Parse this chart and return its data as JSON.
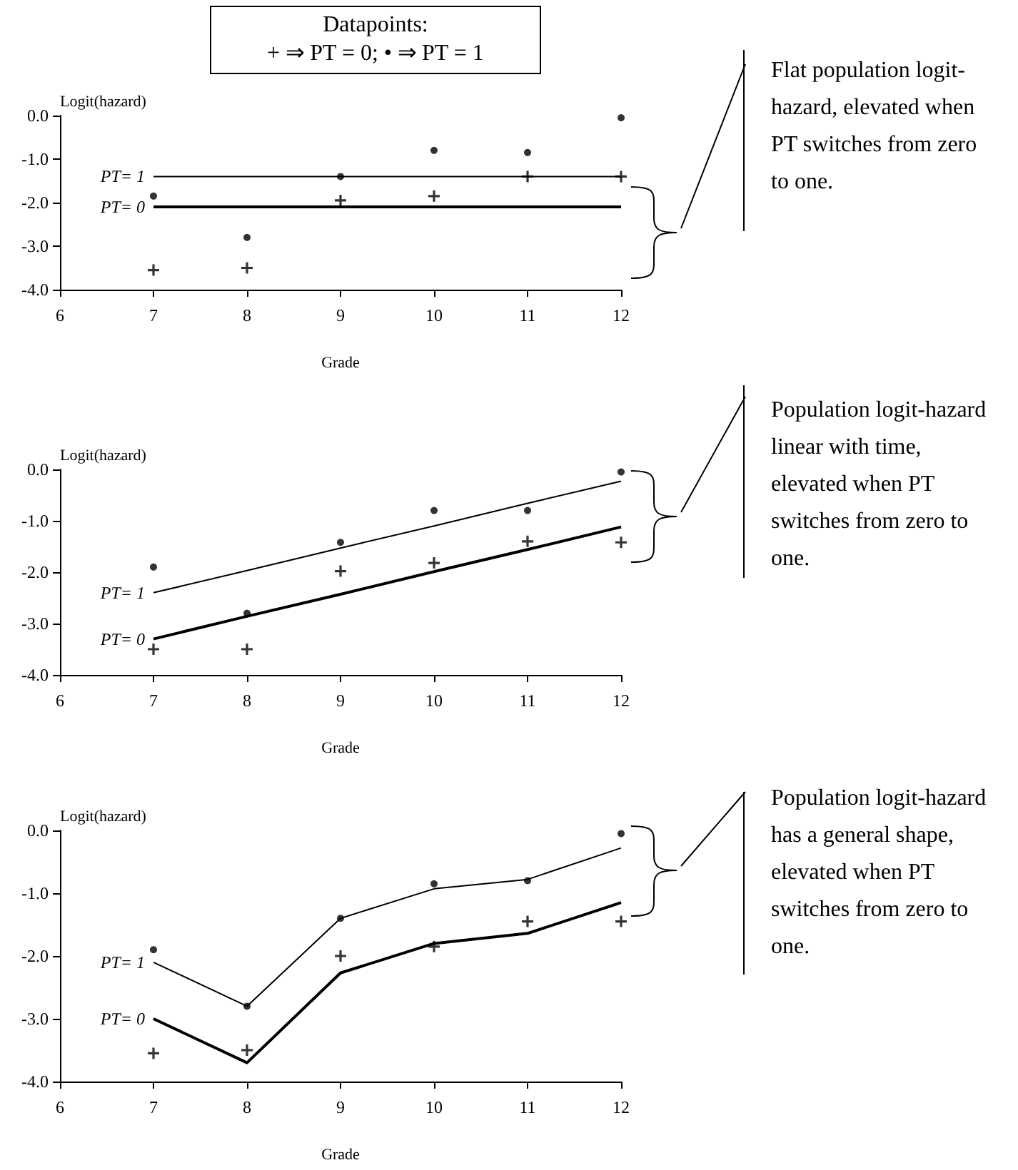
{
  "chart_data": [
    {
      "type": "line",
      "title": "Datapoints:\n+ ⇒ PT = 0; • ⇒ PT = 1",
      "xlabel": "Grade",
      "ylabel": "Logit(hazard)",
      "x": [
        7,
        8,
        9,
        10,
        11,
        12
      ],
      "xlim": [
        6,
        12
      ],
      "xticks": [
        6,
        7,
        8,
        9,
        10,
        11,
        12
      ],
      "ylim": [
        -4,
        0
      ],
      "yticks": [
        {
          "value": -4,
          "label": "-4.0"
        },
        {
          "value": -3,
          "label": "-3.0"
        },
        {
          "value": -2,
          "label": "-2.0"
        },
        {
          "value": -1,
          "label": "-1.0"
        },
        {
          "value": 0,
          "label": "0.0"
        }
      ],
      "grid": false,
      "legend": "left",
      "series": [
        {
          "name": "PT= 1",
          "color": "#000000",
          "marker": "none",
          "values": [
            -1.4,
            -1.4,
            -1.4,
            -1.4,
            -1.4,
            -1.4
          ]
        },
        {
          "name": "PT= 0",
          "color": "#000000",
          "marker": "none",
          "values": [
            -2.1,
            -2.1,
            -2.1,
            -2.1,
            -2.1,
            -2.1
          ]
        },
        {
          "type": "scatter",
          "color": "#000000",
          "marker": "cross",
          "values": [
            -3.55,
            -3.5,
            -1.95,
            -1.85,
            -1.4,
            -1.4
          ]
        },
        {
          "type": "scatter",
          "color": "#000000",
          "marker": "circle",
          "values": [
            -1.85,
            -2.8,
            -1.4,
            -0.8,
            -0.85,
            -0.05
          ]
        }
      ],
      "annotations": [
        "Flat population logit-hazard, elevated when PT switches from zero to one."
      ]
    },
    {
      "type": "line",
      "xlabel": "Grade",
      "ylabel": "Logit(hazard)",
      "x": [
        7,
        8,
        9,
        10,
        11,
        12
      ],
      "xlim": [
        6,
        12
      ],
      "xticks": [
        6,
        7,
        8,
        9,
        10,
        11,
        12
      ],
      "ylim": [
        -4,
        0
      ],
      "yticks": [
        {
          "value": -4,
          "label": "-4.0"
        },
        {
          "value": -3,
          "label": "-3.0"
        },
        {
          "value": -2,
          "label": "-2.0"
        },
        {
          "value": -1,
          "label": "-1.0"
        },
        {
          "value": 0,
          "label": "0.0"
        }
      ],
      "grid": false,
      "legend": "left",
      "series": [
        {
          "name": "PT= 1",
          "color": "#000000",
          "marker": "none",
          "values": [
            -2.4,
            -1.97,
            -1.53,
            -1.1,
            -0.66,
            -0.23
          ]
        },
        {
          "name": "PT= 0",
          "color": "#000000",
          "marker": "none",
          "values": [
            -3.3,
            -2.86,
            -2.43,
            -1.99,
            -1.56,
            -1.12
          ]
        },
        {
          "type": "scatter",
          "color": "#000000",
          "marker": "cross",
          "values": [
            -3.5,
            -3.5,
            -1.98,
            -1.82,
            -1.4,
            -1.42
          ]
        },
        {
          "type": "scatter",
          "color": "#000000",
          "marker": "circle",
          "values": [
            -1.9,
            -2.8,
            -1.42,
            -0.8,
            -0.8,
            -0.05
          ]
        }
      ],
      "annotations": [
        "Population logit-hazard linear with time, elevated when PT switches from zero to one."
      ]
    },
    {
      "type": "line",
      "xlabel": "Grade",
      "ylabel": "Logit(hazard)",
      "x": [
        7,
        8,
        9,
        10,
        11,
        12
      ],
      "xlim": [
        6,
        12
      ],
      "xticks": [
        6,
        7,
        8,
        9,
        10,
        11,
        12
      ],
      "ylim": [
        -4,
        0
      ],
      "yticks": [
        {
          "value": -4,
          "label": "-4.0"
        },
        {
          "value": -3,
          "label": "-3.0"
        },
        {
          "value": -2,
          "label": "-2.0"
        },
        {
          "value": -1,
          "label": "-1.0"
        },
        {
          "value": 0,
          "label": "0.0"
        }
      ],
      "grid": false,
      "legend": "left",
      "series": [
        {
          "name": "PT= 1",
          "color": "#000000",
          "marker": "none",
          "values": [
            -2.1,
            -2.8,
            -1.4,
            -0.93,
            -0.78,
            -0.28
          ]
        },
        {
          "name": "PT= 0",
          "color": "#000000",
          "marker": "none",
          "values": [
            -3.0,
            -3.7,
            -2.27,
            -1.8,
            -1.64,
            -1.15
          ]
        },
        {
          "type": "scatter",
          "color": "#000000",
          "marker": "cross",
          "values": [
            -3.55,
            -3.5,
            -2.0,
            -1.85,
            -1.45,
            -1.45
          ]
        },
        {
          "type": "scatter",
          "color": "#000000",
          "marker": "circle",
          "values": [
            -1.9,
            -2.8,
            -1.4,
            -0.85,
            -0.8,
            -0.05
          ]
        }
      ],
      "annotations": [
        "Population logit-hazard has a general shape, elevated when PT switches from zero to one."
      ]
    }
  ]
}
